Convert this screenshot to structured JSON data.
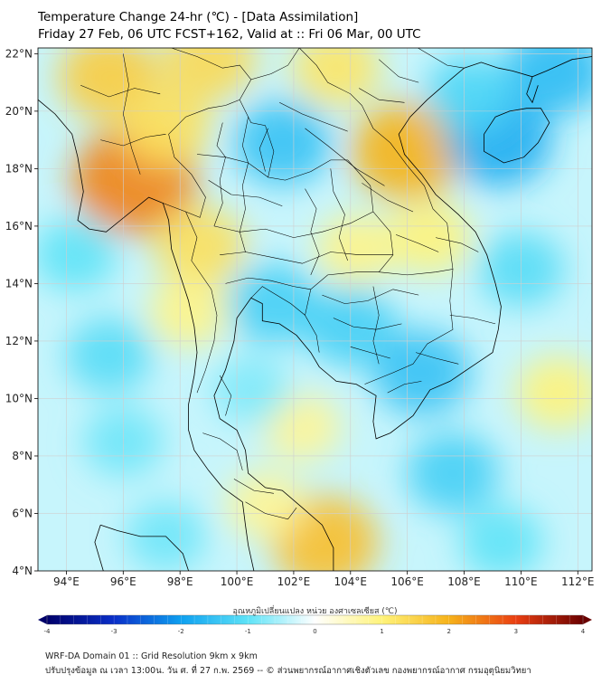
{
  "header": {
    "title_line1": "Temperature Change 24-hr (℃) - [Data Assimilation]",
    "title_line2": "Friday 27 Feb, 06 UTC FCST+162, Valid at :: Fri 06 Mar, 00 UTC"
  },
  "map": {
    "lon_range": [
      93,
      112.5
    ],
    "lat_range": [
      4,
      22.2
    ],
    "lat_ticks": [
      {
        "value": 22,
        "label": "22°N"
      },
      {
        "value": 20,
        "label": "20°N"
      },
      {
        "value": 18,
        "label": "18°N"
      },
      {
        "value": 16,
        "label": "16°N"
      },
      {
        "value": 14,
        "label": "14°N"
      },
      {
        "value": 12,
        "label": "12°N"
      },
      {
        "value": 10,
        "label": "10°N"
      },
      {
        "value": 8,
        "label": "8°N"
      },
      {
        "value": 6,
        "label": "6°N"
      },
      {
        "value": 4,
        "label": "4°N"
      }
    ],
    "lon_ticks": [
      {
        "value": 94,
        "label": "94°E"
      },
      {
        "value": 96,
        "label": "96°E"
      },
      {
        "value": 98,
        "label": "98°E"
      },
      {
        "value": 100,
        "label": "100°E"
      },
      {
        "value": 102,
        "label": "102°E"
      },
      {
        "value": 104,
        "label": "104°E"
      },
      {
        "value": 106,
        "label": "106°E"
      },
      {
        "value": 108,
        "label": "108°E"
      },
      {
        "value": 110,
        "label": "110°E"
      },
      {
        "value": 112,
        "label": "112°E"
      }
    ],
    "field_anomalies": [
      {
        "name": "n-myanmar-warm",
        "lon": 95.5,
        "lat": 21.2,
        "value": 1.6
      },
      {
        "name": "myanmar-hot",
        "lon": 96.4,
        "lat": 17.6,
        "value": 2.4
      },
      {
        "name": "myanmar-warm2",
        "lon": 97.5,
        "lat": 19.5,
        "value": 1.3
      },
      {
        "name": "n-laos-warm",
        "lon": 99.0,
        "lat": 21.8,
        "value": 1.4
      },
      {
        "name": "nw-warm",
        "lon": 103.5,
        "lat": 21.5,
        "value": 1.2
      },
      {
        "name": "vietnam-coast-hot",
        "lon": 106.0,
        "lat": 18.6,
        "value": 2.0
      },
      {
        "name": "w-thai-warm",
        "lon": 98.7,
        "lat": 15.3,
        "value": 1.3
      },
      {
        "name": "w-thai-warm2",
        "lon": 98.3,
        "lat": 13.0,
        "value": 0.9
      },
      {
        "name": "laos-center-warm",
        "lon": 104.2,
        "lat": 15.2,
        "value": 0.9
      },
      {
        "name": "c-vietnam-warm",
        "lon": 106.8,
        "lat": 15.6,
        "value": 1.0
      },
      {
        "name": "s-gulf-warm",
        "lon": 103.1,
        "lat": 5.0,
        "value": 1.8
      },
      {
        "name": "s-peninsula-warm",
        "lon": 101.0,
        "lat": 6.3,
        "value": 0.8
      },
      {
        "name": "s-chinasea-warm",
        "lon": 111.3,
        "lat": 10.2,
        "value": 1.0
      },
      {
        "name": "gulf-thai-warm",
        "lon": 102.3,
        "lat": 9.0,
        "value": 0.8
      },
      {
        "name": "hainan-cold",
        "lon": 109.2,
        "lat": 19.0,
        "value": -1.8
      },
      {
        "name": "ne-sea-cold",
        "lon": 111.2,
        "lat": 21.4,
        "value": -1.6
      },
      {
        "name": "gulf-tonkin-cold",
        "lon": 108.2,
        "lat": 20.6,
        "value": -1.2
      },
      {
        "name": "laos-n-cold",
        "lon": 101.6,
        "lat": 18.9,
        "value": -1.5
      },
      {
        "name": "thai-c-cold",
        "lon": 101.3,
        "lat": 13.3,
        "value": -1.3
      },
      {
        "name": "cambodia-cold",
        "lon": 104.0,
        "lat": 12.5,
        "value": -1.3
      },
      {
        "name": "cambodia-s-cold",
        "lon": 106.5,
        "lat": 10.9,
        "value": -1.5
      },
      {
        "name": "andaman-cold",
        "lon": 95.5,
        "lat": 11.5,
        "value": -1.1
      },
      {
        "name": "bay-bengal-cold",
        "lon": 94.3,
        "lat": 15.0,
        "value": -1.0
      },
      {
        "name": "andaman-s-cold",
        "lon": 96.0,
        "lat": 8.5,
        "value": -0.9
      },
      {
        "name": "malacca-cold",
        "lon": 97.5,
        "lat": 5.2,
        "value": -0.9
      },
      {
        "name": "s-sea-cold",
        "lon": 107.6,
        "lat": 7.4,
        "value": -1.3
      },
      {
        "name": "s-sea-cold2",
        "lon": 109.3,
        "lat": 5.0,
        "value": -1.0
      },
      {
        "name": "e-sea-cold",
        "lon": 110.0,
        "lat": 14.5,
        "value": -1.1
      },
      {
        "name": "gulf-thai-cold",
        "lon": 100.5,
        "lat": 10.3,
        "value": -0.8
      }
    ],
    "colors": {
      "land_outline": "#000000",
      "gridline": "#cfcfcf",
      "frame": "#000000"
    }
  },
  "colorbar": {
    "label": "อุณหภูมิเปลี่ยนแปลง หน่วย องศาเซลเซียส (℃)",
    "min": -4,
    "max": 4,
    "ticks": [
      "-4",
      "-3",
      "-2",
      "-1",
      "0",
      "1",
      "2",
      "3",
      "4"
    ],
    "stops": [
      {
        "v": -4,
        "c": "#00006a"
      },
      {
        "v": -3,
        "c": "#0a2fc8"
      },
      {
        "v": -2,
        "c": "#0ea0f0"
      },
      {
        "v": -1,
        "c": "#5ee3f7"
      },
      {
        "v": 0,
        "c": "#ffffff"
      },
      {
        "v": 1,
        "c": "#fff37a"
      },
      {
        "v": 2,
        "c": "#f6b21a"
      },
      {
        "v": 3,
        "c": "#ea3f12"
      },
      {
        "v": 4,
        "c": "#6a0000"
      }
    ]
  },
  "footer": {
    "line1": "WRF-DA Domain 01 :: Grid Resolution 9km x 9km",
    "line2": "ปรับปรุงข้อมูล ณ เวลา 13:00น. วัน ศ. ที่ 27 ก.พ. 2569 -- © ส่วนพยากรณ์อากาศเชิงตัวเลข กองพยากรณ์อากาศ กรมอุตุนิยมวิทยา"
  }
}
